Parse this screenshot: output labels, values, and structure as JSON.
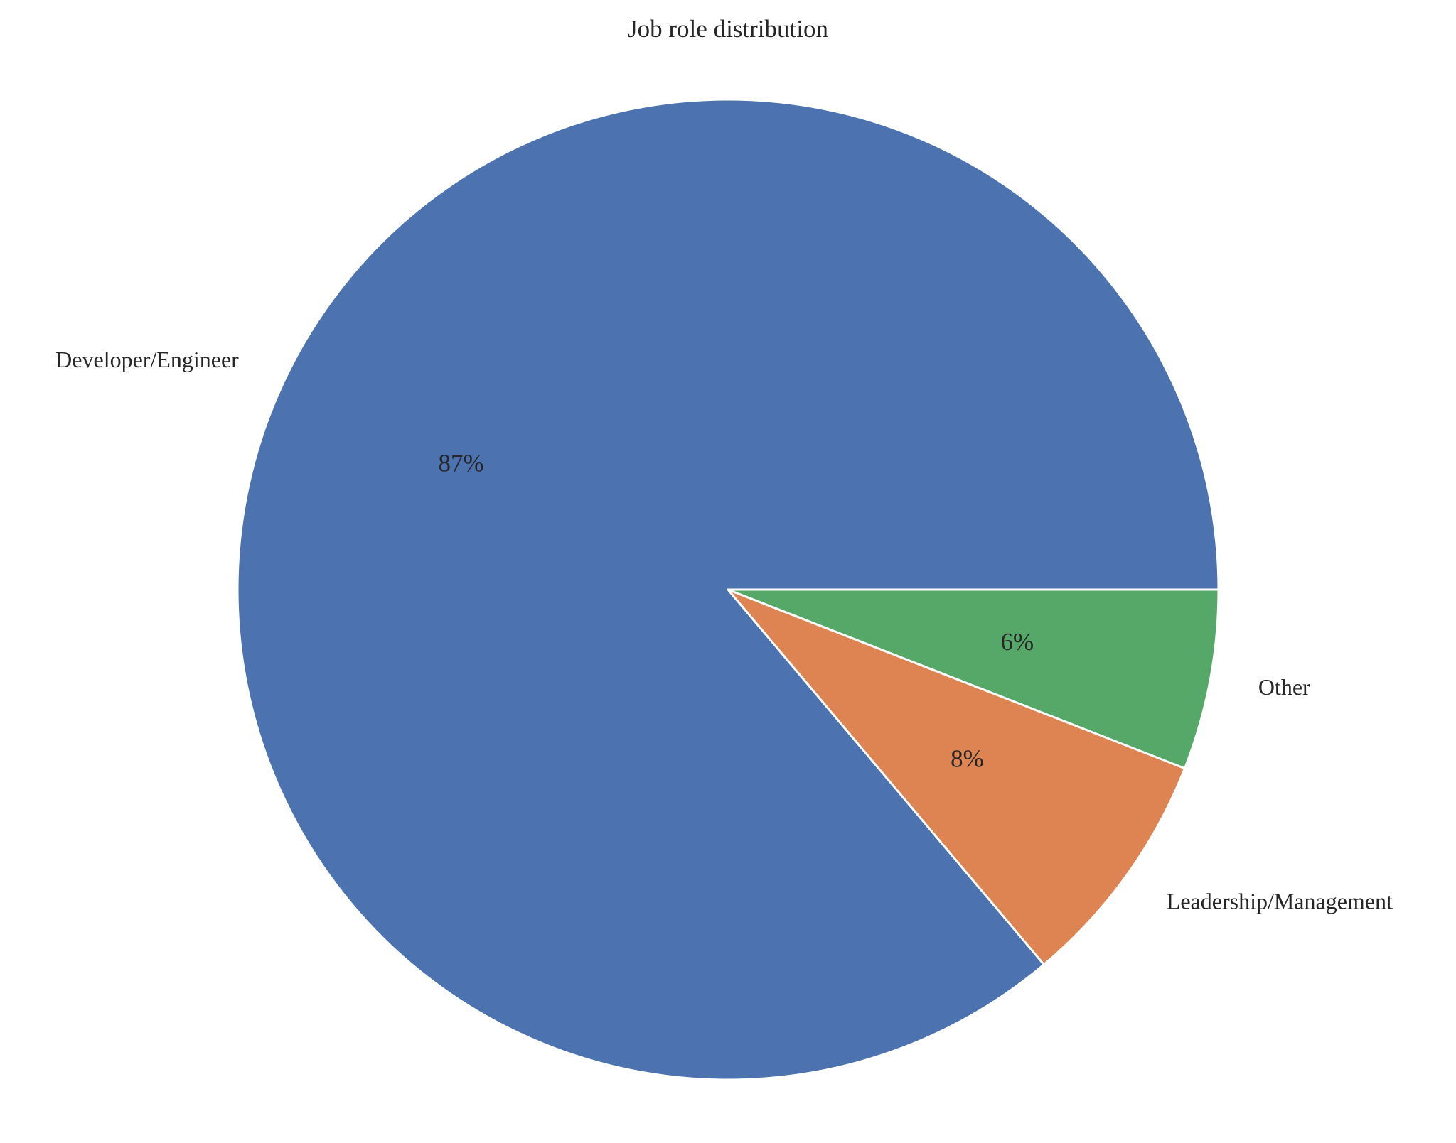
{
  "chart_data": {
    "type": "pie",
    "title": "Job role distribution",
    "categories": [
      "Developer/Engineer",
      "Leadership/Management",
      "Other"
    ],
    "values": [
      87,
      8,
      6
    ],
    "value_labels": [
      "87%",
      "8%",
      "6%"
    ],
    "colors": [
      "#4c72b0",
      "#dd8452",
      "#55a868"
    ],
    "start_angle_deg": 0,
    "direction": "counterclockwise",
    "legend": "none"
  }
}
